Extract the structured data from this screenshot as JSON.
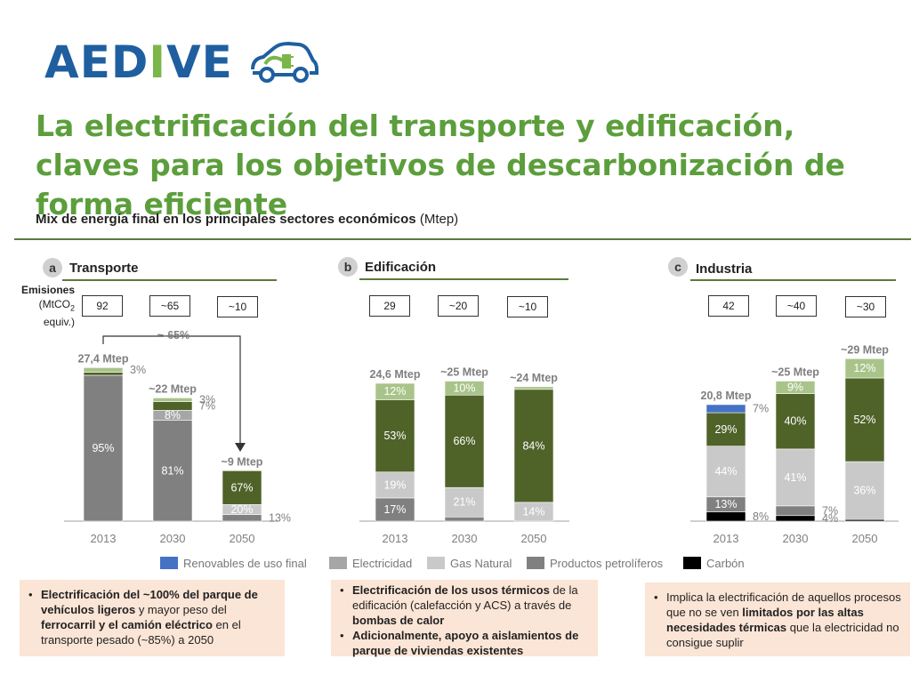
{
  "logo": {
    "part1": "AED",
    "part2": "I",
    "part3": "VE",
    "icon": "electric-car-plug-icon"
  },
  "title": "La electrificación del transporte y edificación, claves para los objetivos de descarbonización de forma eficiente",
  "subtitle": {
    "bold": "Mix de energía final en los principales sectores económicos",
    "normal": " (Mtep)"
  },
  "emissions_label": {
    "line1": "Emisiones",
    "line2a": "(MtCO",
    "line2sub": "2",
    "line3": "equiv.)"
  },
  "colors": {
    "renovables": "#4472c4",
    "electricidad": "#a6a6a6",
    "gas_natural": "#c9c9c9",
    "productos_petroliferos": "#808080",
    "carbon": "#000000",
    "green_dark": "#4f6228",
    "green_light": "#a9c48a",
    "accent_green": "#5c9e3c",
    "note_bg": "#fbe5d6"
  },
  "sections": [
    {
      "letter": "a",
      "title": "Transporte"
    },
    {
      "letter": "b",
      "title": "Edificación"
    },
    {
      "letter": "c",
      "title": "Industria"
    }
  ],
  "legend": [
    {
      "label": "Renovables de uso final",
      "color": "#4472c4"
    },
    {
      "label": "Electricidad",
      "color": "#a6a6a6"
    },
    {
      "label": "Gas Natural",
      "color": "#c9c9c9"
    },
    {
      "label": "Productos petrolíferos",
      "color": "#808080"
    },
    {
      "label": "Carbón",
      "color": "#000000"
    }
  ],
  "notes": {
    "transporte": [
      [
        {
          "b": true,
          "t": "Electrificación del ~100% del parque de vehículos ligeros"
        },
        {
          "b": false,
          "t": " y mayor peso del "
        },
        {
          "b": true,
          "t": "ferrocarril y el camión eléctrico"
        },
        {
          "b": false,
          "t": " en el transporte pesado (~85%) a 2050"
        }
      ]
    ],
    "edificacion": [
      [
        {
          "b": true,
          "t": "Electrificación de los usos térmicos"
        },
        {
          "b": false,
          "t": " de la edificación (calefacción y ACS) a través de "
        },
        {
          "b": true,
          "t": "bombas de calor"
        }
      ],
      [
        {
          "b": true,
          "t": "Adicionalmente, apoyo a aislamientos de parque de viviendas existentes"
        }
      ]
    ],
    "industria": [
      [
        {
          "b": false,
          "t": "Implica la electrificación de aquellos procesos que no se ven "
        },
        {
          "b": true,
          "t": "limitados por las altas necesidades térmicas"
        },
        {
          "b": false,
          "t": " que la electricidad no consigue suplir"
        }
      ]
    ]
  },
  "chart_data": [
    {
      "type": "bar",
      "stacked": true,
      "section": "Transporte",
      "categories": [
        "2013",
        "2030",
        "2050"
      ],
      "totals": [
        "27,4 Mtep",
        "~22 Mtep",
        "~9 Mtep"
      ],
      "total_values": [
        27.4,
        22,
        9
      ],
      "emissions": [
        "92",
        "~65",
        "~10"
      ],
      "annotation": "~-65%",
      "bars": [
        [
          {
            "value": 95,
            "label": "95%",
            "color": "#808080"
          },
          {
            "value": 2,
            "label": "",
            "color": "#4f6228"
          },
          {
            "value": 3,
            "label": "3%",
            "color": "#a9c48a"
          }
        ],
        [
          {
            "value": 81,
            "label": "81%",
            "color": "#808080"
          },
          {
            "value": 8,
            "label": "8%",
            "color": "#a6a6a6"
          },
          {
            "value": 7,
            "label": "7%",
            "color": "#4f6228"
          },
          {
            "value": 3,
            "label": "3%",
            "color": "#a9c48a"
          }
        ],
        [
          {
            "value": 13,
            "label": "13%",
            "color": "#808080"
          },
          {
            "value": 20,
            "label": "20%",
            "color": "#c9c9c9"
          },
          {
            "value": 67,
            "label": "67%",
            "color": "#4f6228"
          }
        ]
      ]
    },
    {
      "type": "bar",
      "stacked": true,
      "section": "Edificación",
      "categories": [
        "2013",
        "2030",
        "2050"
      ],
      "totals": [
        "24,6 Mtep",
        "~25 Mtep",
        "~24 Mtep"
      ],
      "total_values": [
        24.6,
        25,
        24
      ],
      "emissions": [
        "29",
        "~20",
        "~10"
      ],
      "bars": [
        [
          {
            "value": 17,
            "label": "17%",
            "color": "#808080"
          },
          {
            "value": 19,
            "label": "19%",
            "color": "#c9c9c9"
          },
          {
            "value": 53,
            "label": "53%",
            "color": "#4f6228"
          },
          {
            "value": 12,
            "label": "12%",
            "color": "#a9c48a"
          }
        ],
        [
          {
            "value": 3,
            "label": "",
            "color": "#808080"
          },
          {
            "value": 21,
            "label": "21%",
            "color": "#c9c9c9"
          },
          {
            "value": 66,
            "label": "66%",
            "color": "#4f6228"
          },
          {
            "value": 10,
            "label": "10%",
            "color": "#a9c48a"
          }
        ],
        [
          {
            "value": 14,
            "label": "14%",
            "color": "#c9c9c9"
          },
          {
            "value": 84,
            "label": "84%",
            "color": "#4f6228"
          },
          {
            "value": 2,
            "label": "",
            "color": "#a9c48a"
          }
        ]
      ]
    },
    {
      "type": "bar",
      "stacked": true,
      "section": "Industria",
      "categories": [
        "2013",
        "2030",
        "2050"
      ],
      "totals": [
        "20,8 Mtep",
        "~25 Mtep",
        "~29 Mtep"
      ],
      "total_values": [
        20.8,
        25,
        29
      ],
      "emissions": [
        "42",
        "~40",
        "~30"
      ],
      "bars": [
        [
          {
            "value": 8,
            "label": "8%",
            "color": "#000000"
          },
          {
            "value": 13,
            "label": "13%",
            "color": "#808080"
          },
          {
            "value": 44,
            "label": "44%",
            "color": "#c9c9c9"
          },
          {
            "value": 29,
            "label": "29%",
            "color": "#4f6228"
          },
          {
            "value": 7,
            "label": "7%",
            "color": "#4472c4"
          }
        ],
        [
          {
            "value": 4,
            "label": "4%",
            "color": "#000000"
          },
          {
            "value": 7,
            "label": "7%",
            "color": "#808080"
          },
          {
            "value": 41,
            "label": "41%",
            "color": "#c9c9c9"
          },
          {
            "value": 40,
            "label": "40%",
            "color": "#4f6228"
          },
          {
            "value": 9,
            "label": "9%",
            "color": "#a9c48a"
          }
        ],
        [
          {
            "value": 1,
            "label": "",
            "color": "#000000"
          },
          {
            "value": 36,
            "label": "36%",
            "color": "#c9c9c9"
          },
          {
            "value": 52,
            "label": "52%",
            "color": "#4f6228"
          },
          {
            "value": 12,
            "label": "12%",
            "color": "#a9c48a"
          }
        ]
      ]
    }
  ]
}
